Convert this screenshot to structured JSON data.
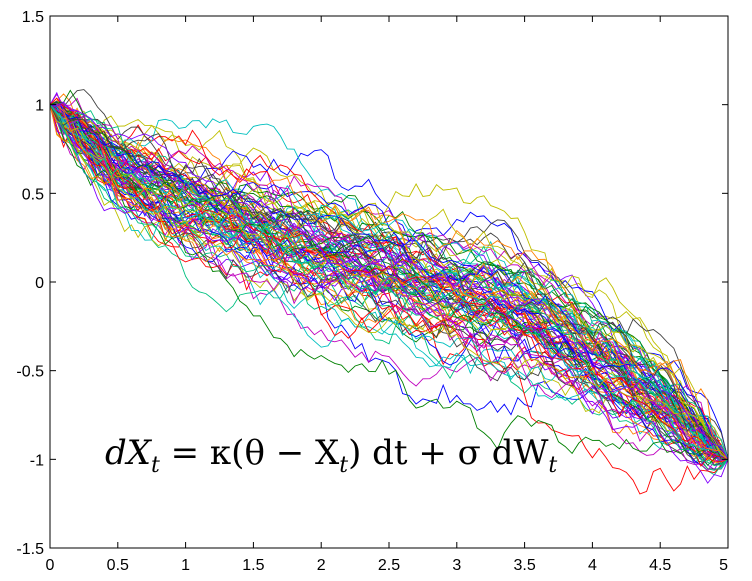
{
  "chart_data": {
    "type": "line",
    "title": "",
    "xlabel": "",
    "ylabel": "",
    "xlim": [
      0,
      5
    ],
    "ylim": [
      -1.5,
      1.5
    ],
    "x_ticks": [
      "0",
      "0.5",
      "1",
      "1.5",
      "2",
      "2.5",
      "3",
      "3.5",
      "4",
      "4.5",
      "5"
    ],
    "y_ticks": [
      "1.5",
      "1",
      "0.5",
      "0",
      "-0.5",
      "-1",
      "-1.5"
    ],
    "grid": false,
    "legend": "none",
    "paths": {
      "count": 100,
      "steps": 100,
      "start": [
        0,
        1
      ],
      "end": [
        5,
        -1
      ],
      "mean_path": {
        "x": [
          0,
          0.5,
          1,
          1.5,
          2,
          2.5,
          3,
          3.5,
          4,
          4.5,
          5
        ],
        "y": [
          1,
          0.62,
          0.42,
          0.28,
          0.15,
          0.04,
          -0.09,
          -0.22,
          -0.45,
          -0.68,
          -1
        ]
      },
      "typical_spread": 0.12
    },
    "series_colors": [
      "#0000ff",
      "#008000",
      "#ff0000",
      "#00bfbf",
      "#bf00bf",
      "#bfbf00",
      "#404040",
      "#ff8000",
      "#8000ff",
      "#00c080"
    ],
    "annotation": {
      "equation_parts": [
        "dX",
        "t",
        " = κ(θ − X",
        "t",
        ") dt + σ dW",
        "t"
      ]
    }
  }
}
